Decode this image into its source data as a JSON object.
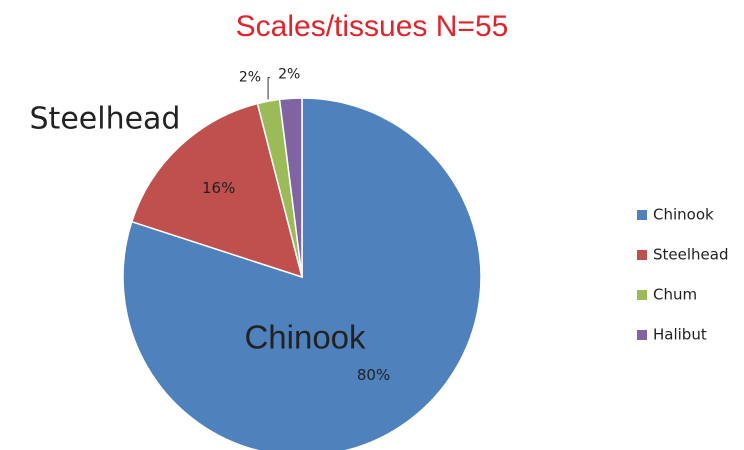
{
  "chart_data": {
    "type": "pie",
    "title": "Scales/tissues  N=55",
    "categories": [
      "Chinook",
      "Steelhead",
      "Chum",
      "Halibut"
    ],
    "values": [
      80,
      16,
      2,
      2
    ],
    "value_labels": [
      "80%",
      "16%",
      "2%",
      "2%"
    ],
    "colors": [
      "#4f81bd",
      "#c0504d",
      "#9bbb59",
      "#8064a2"
    ],
    "annotations": [
      "Steelhead",
      "Chinook"
    ],
    "legend": "right"
  }
}
